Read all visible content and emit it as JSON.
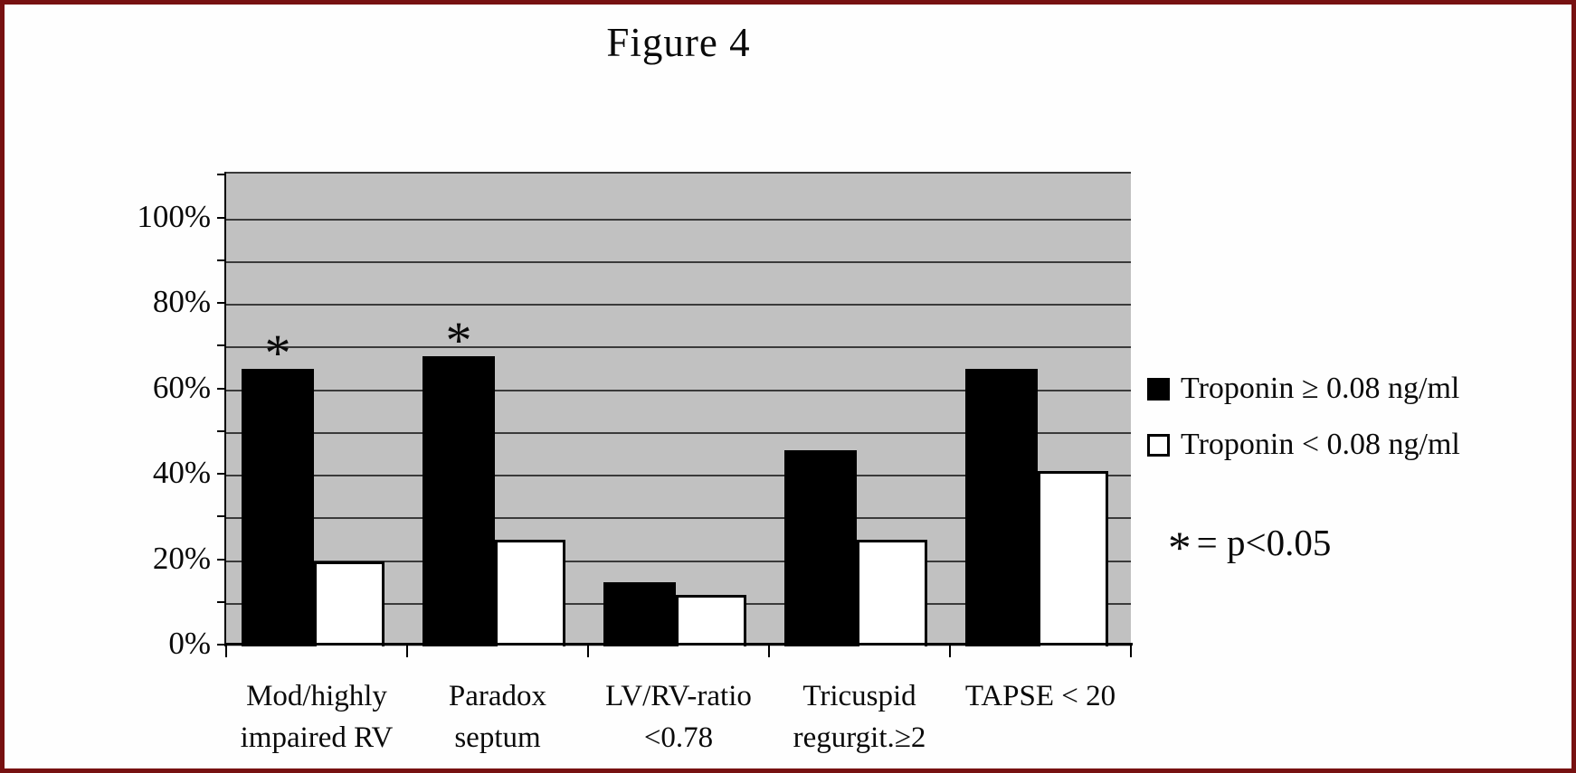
{
  "chart_data": {
    "type": "bar",
    "title": "Figure 4",
    "categories": [
      {
        "line1": "Mod/highly",
        "line2": "impaired RV"
      },
      {
        "line1": "Paradox",
        "line2": "septum"
      },
      {
        "line1": "LV/RV-ratio",
        "line2": "<0.78"
      },
      {
        "line1": "Tricuspid",
        "line2": "regurgit.≥2"
      },
      {
        "line1": "TAPSE < 20",
        "line2": ""
      }
    ],
    "series": [
      {
        "name": "Troponin ≥ 0.08 ng/ml",
        "fill": "#000000",
        "values": [
          65,
          68,
          15,
          46,
          65
        ]
      },
      {
        "name": "Troponin < 0.08 ng/ml",
        "fill": "#ffffff",
        "values": [
          20,
          25,
          12,
          25,
          41
        ]
      }
    ],
    "significance": {
      "marker": "*",
      "marked_category_indexes": [
        0,
        1
      ]
    },
    "annotation": {
      "marker": "*",
      "text": "= p<0.05"
    },
    "y_axis": {
      "tick_labels": [
        "0%",
        "20%",
        "40%",
        "60%",
        "80%",
        "100%"
      ],
      "min": 0,
      "max": 100,
      "plot_top": 110,
      "grid_interval": 10,
      "label_interval": 20
    },
    "legend_position": "right",
    "grid": "horizontal",
    "plot_bg_color": "#c1c1c1",
    "frame_border_color": "#771111"
  }
}
